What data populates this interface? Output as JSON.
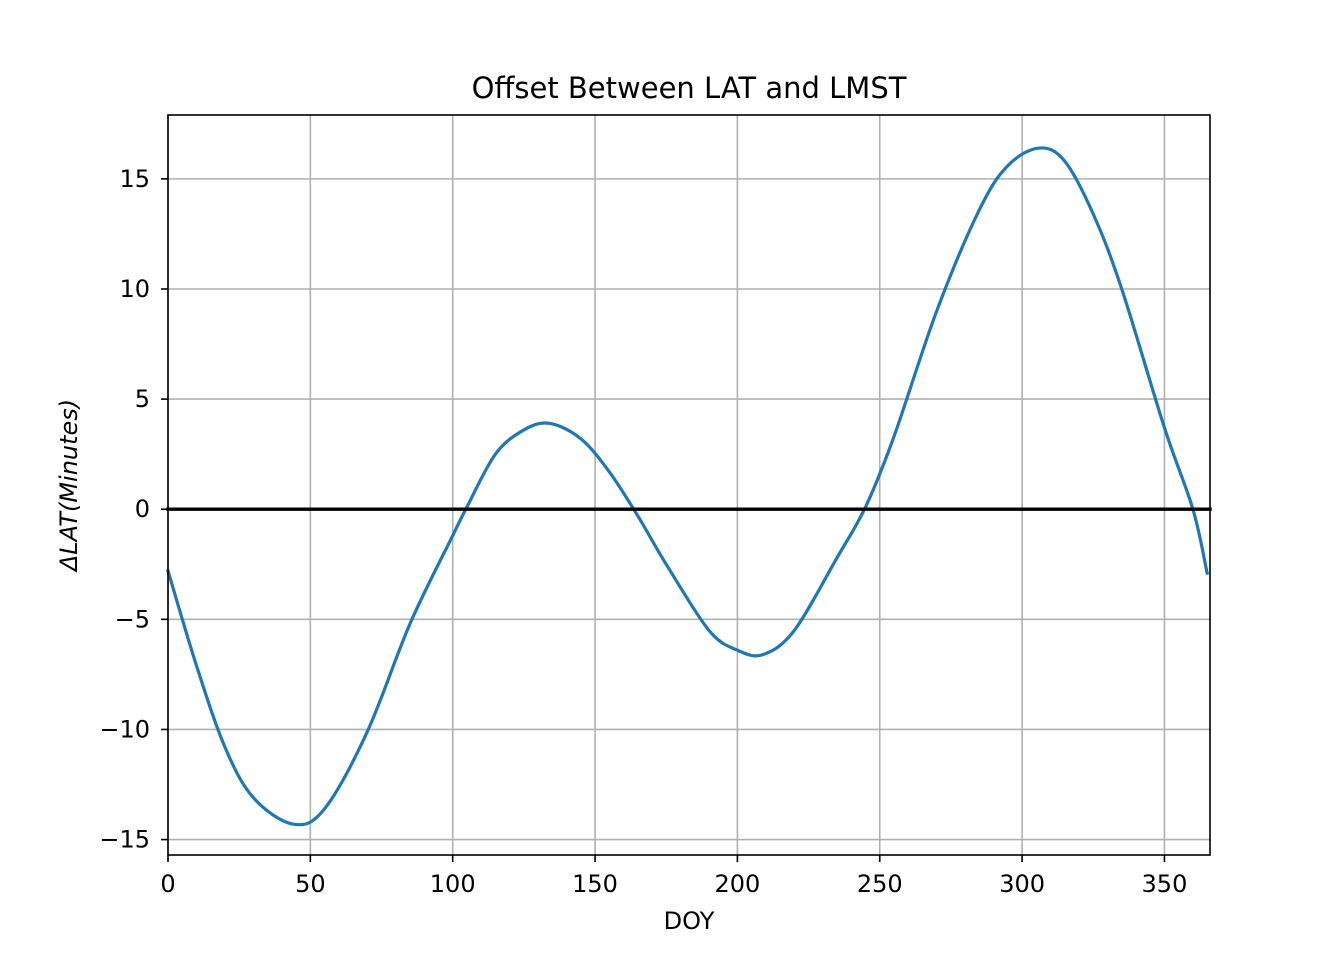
{
  "chart_data": {
    "type": "line",
    "title": "Offset Between LAT and LMST",
    "xlabel": "DOY",
    "ylabel": "ΔLAT(Minutes)",
    "xlim": [
      0,
      366
    ],
    "ylim": [
      -15.7,
      17.9
    ],
    "xticks": [
      0,
      50,
      100,
      150,
      200,
      250,
      300,
      350
    ],
    "yticks": [
      -15,
      -10,
      -5,
      0,
      5,
      10,
      15
    ],
    "grid": true,
    "legend": "none",
    "series": [
      {
        "color": "#1f77b4",
        "x": [
          0,
          10,
          20,
          30,
          44,
          55,
          70,
          85,
          100,
          105,
          115,
          125,
          134,
          145,
          155,
          165,
          175,
          190,
          200,
          209,
          220,
          235,
          245,
          255,
          270,
          285,
          295,
          306,
          315,
          325,
          335,
          350,
          360,
          365
        ],
        "y": [
          -2.8,
          -7.1,
          -10.8,
          -13.1,
          -14.3,
          -13.6,
          -10.1,
          -5.2,
          -1.2,
          0.1,
          2.5,
          3.6,
          3.9,
          3.2,
          1.7,
          -0.3,
          -2.5,
          -5.5,
          -6.4,
          -6.6,
          -5.5,
          -2.2,
          0.1,
          3.3,
          9.0,
          13.6,
          15.6,
          16.4,
          15.8,
          13.4,
          10.0,
          3.7,
          0.0,
          -2.9
        ]
      },
      {
        "color": "#000000",
        "x": [
          0,
          366
        ],
        "y": [
          0,
          0
        ]
      }
    ]
  }
}
